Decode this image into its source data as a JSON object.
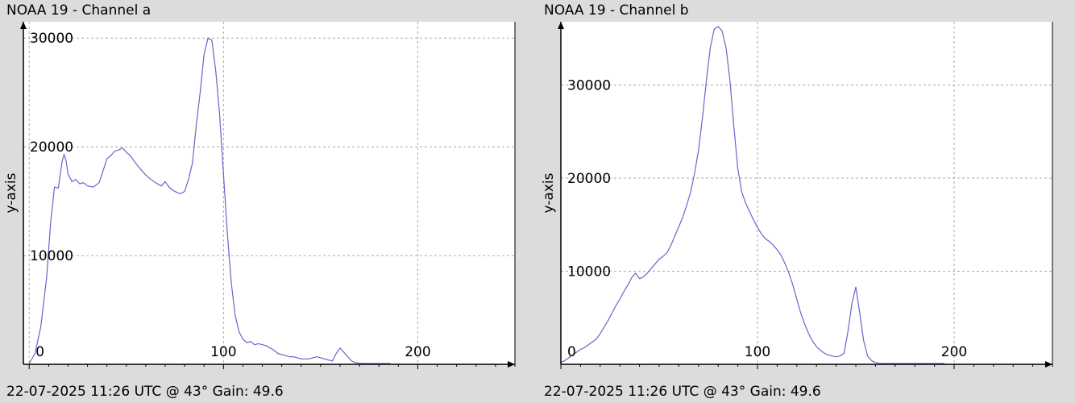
{
  "chart_data": [
    {
      "type": "line",
      "title": "NOAA 19 - Channel a",
      "xlabel": "",
      "ylabel": "y-axis",
      "footer": "22-07-2025 11:26 UTC @ 43° Gain: 49.6",
      "xlim": [
        -3,
        250
      ],
      "ylim": [
        0,
        31500
      ],
      "xticks": [
        0,
        100,
        200
      ],
      "yticks": [
        10000,
        20000,
        30000
      ],
      "grid": true,
      "line_color": "#6666cc",
      "series": [
        {
          "x": [
            0,
            3,
            6,
            9,
            11,
            13,
            15,
            16,
            17,
            18,
            19,
            20,
            22,
            24,
            26,
            28,
            30,
            33,
            36,
            38,
            40,
            42,
            44,
            46,
            48,
            50,
            52,
            54,
            56,
            58,
            60,
            62,
            65,
            68,
            70,
            72,
            74,
            76,
            78,
            80,
            82,
            84,
            86,
            88,
            90,
            92,
            94,
            96,
            98,
            100,
            102,
            104,
            106,
            108,
            110,
            112,
            114,
            116,
            118,
            120,
            122,
            124,
            126,
            128,
            130,
            132,
            134,
            136,
            138,
            140,
            142,
            144,
            146,
            148,
            150,
            152,
            154,
            156,
            158,
            160,
            162,
            164,
            166,
            168,
            170,
            172,
            174,
            176,
            178,
            180,
            182,
            186
          ],
          "y": [
            0,
            1000,
            3500,
            8000,
            13000,
            16300,
            16200,
            17500,
            18700,
            19300,
            18700,
            17500,
            16800,
            17000,
            16600,
            16700,
            16400,
            16300,
            16700,
            17800,
            18900,
            19200,
            19600,
            19700,
            19900,
            19500,
            19200,
            18700,
            18200,
            17800,
            17400,
            17100,
            16700,
            16400,
            16800,
            16300,
            16000,
            15800,
            15700,
            15900,
            17000,
            18500,
            22000,
            25000,
            28500,
            30000,
            29800,
            27000,
            23000,
            17500,
            12000,
            7500,
            4500,
            3000,
            2300,
            2000,
            2100,
            1800,
            1900,
            1800,
            1700,
            1500,
            1300,
            1000,
            900,
            800,
            700,
            700,
            600,
            500,
            500,
            500,
            600,
            700,
            600,
            500,
            400,
            300,
            1000,
            1500,
            1100,
            700,
            300,
            150,
            100,
            80,
            60,
            50,
            40,
            30,
            20,
            0
          ]
        }
      ]
    },
    {
      "type": "line",
      "title": "NOAA 19 - Channel b",
      "xlabel": "",
      "ylabel": "y-axis",
      "footer": "22-07-2025 11:26 UTC @ 43° Gain: 49.6",
      "xlim": [
        0,
        250
      ],
      "ylim": [
        0,
        36800
      ],
      "xticks": [
        0,
        100,
        200
      ],
      "yticks": [
        10000,
        20000,
        30000
      ],
      "grid": true,
      "line_color": "#6666cc",
      "series": [
        {
          "x": [
            0,
            2,
            4,
            6,
            8,
            10,
            12,
            14,
            16,
            18,
            20,
            22,
            24,
            26,
            28,
            30,
            32,
            34,
            36,
            38,
            40,
            42,
            44,
            46,
            48,
            50,
            52,
            54,
            56,
            58,
            60,
            62,
            64,
            66,
            68,
            70,
            72,
            74,
            76,
            78,
            80,
            82,
            84,
            86,
            88,
            90,
            92,
            94,
            96,
            98,
            100,
            102,
            104,
            106,
            108,
            110,
            112,
            114,
            116,
            118,
            120,
            122,
            124,
            126,
            128,
            130,
            132,
            134,
            136,
            138,
            140,
            142,
            144,
            146,
            148,
            150,
            152,
            154,
            156,
            158,
            160,
            162,
            164,
            166,
            168,
            170,
            172,
            174,
            176,
            178,
            180,
            182,
            184,
            186,
            188,
            190,
            195
          ],
          "y": [
            200,
            400,
            700,
            1000,
            1300,
            1600,
            1800,
            2100,
            2400,
            2700,
            3300,
            4000,
            4700,
            5500,
            6300,
            7000,
            7800,
            8500,
            9300,
            9800,
            9200,
            9400,
            9800,
            10300,
            10800,
            11300,
            11600,
            12000,
            12800,
            13800,
            14800,
            15800,
            17100,
            18500,
            20500,
            23000,
            26500,
            30500,
            34000,
            36000,
            36300,
            35800,
            34000,
            30500,
            25500,
            21000,
            18500,
            17300,
            16400,
            15500,
            14700,
            14000,
            13500,
            13200,
            12800,
            12300,
            11700,
            10800,
            9800,
            8500,
            7000,
            5500,
            4300,
            3300,
            2500,
            1900,
            1500,
            1200,
            1000,
            900,
            800,
            900,
            1200,
            3500,
            6500,
            8300,
            5500,
            2500,
            900,
            400,
            200,
            100,
            80,
            60,
            50,
            40,
            30,
            20,
            10,
            5,
            2,
            0,
            0,
            0,
            0,
            0,
            0
          ]
        }
      ]
    }
  ]
}
